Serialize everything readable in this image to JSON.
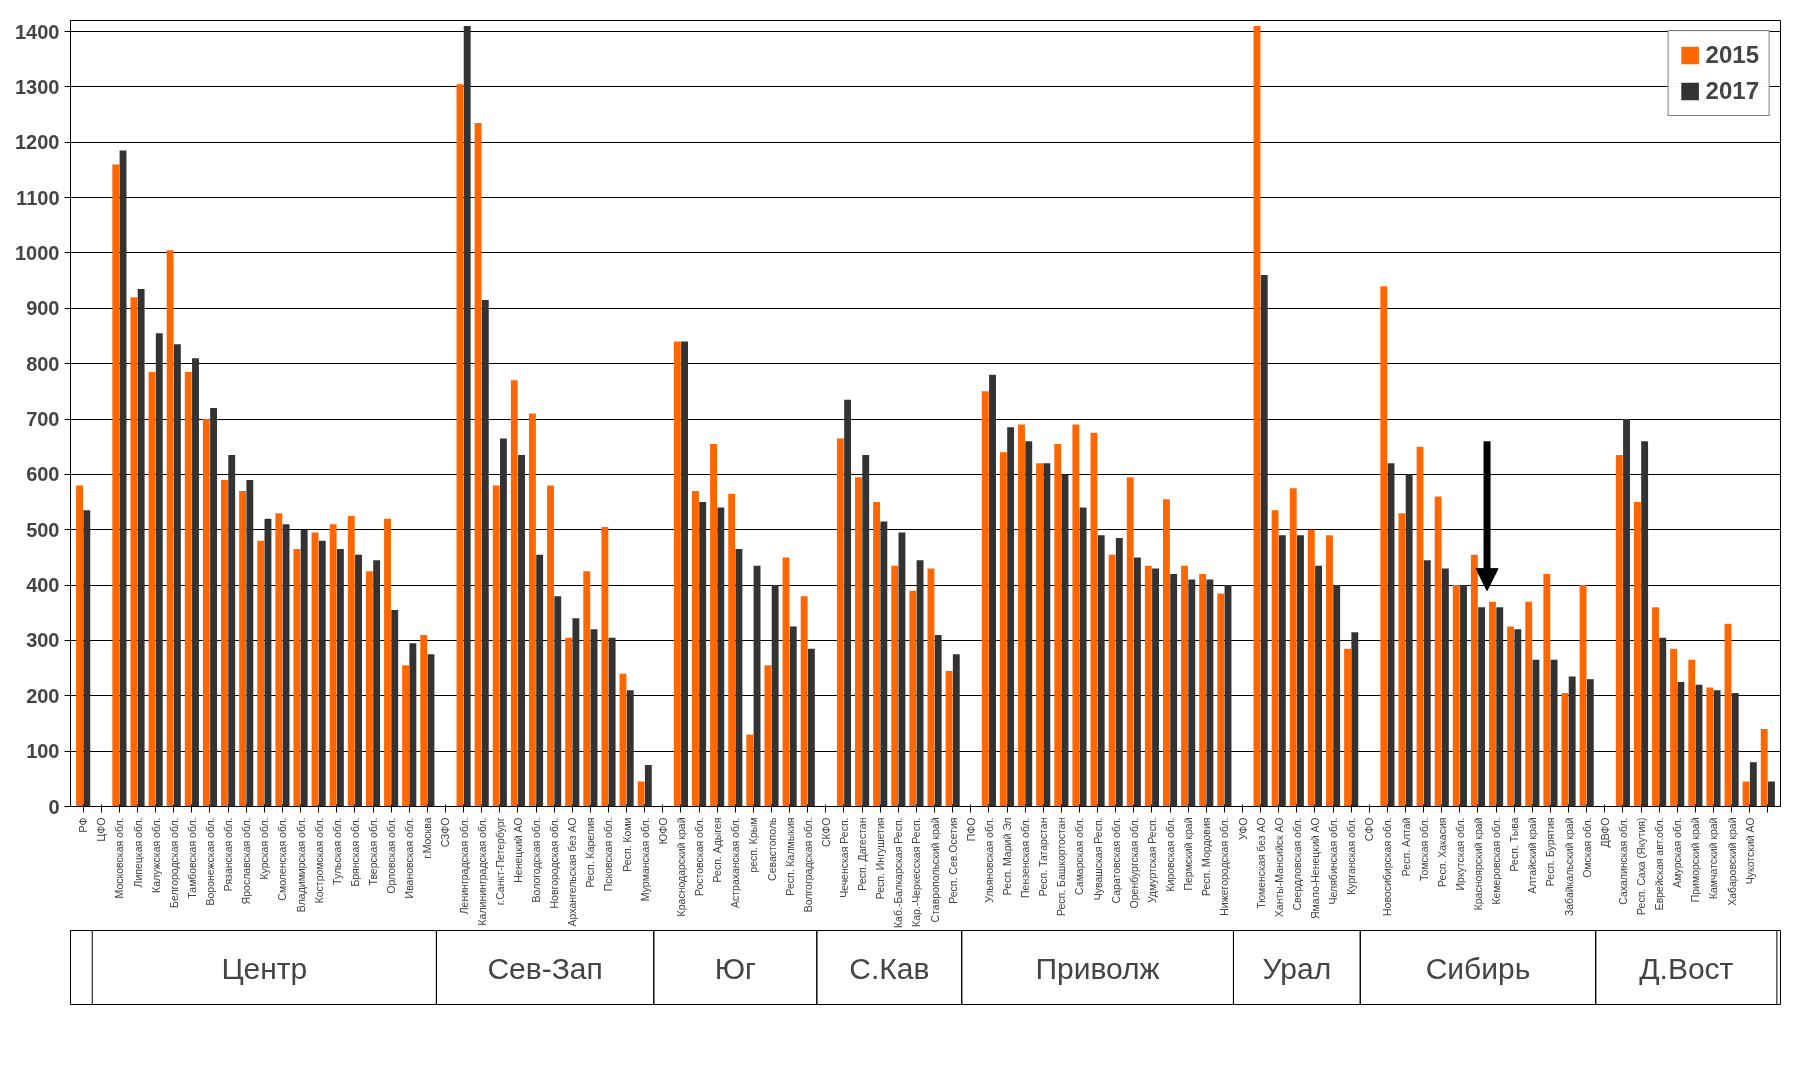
{
  "chart_data": {
    "type": "bar",
    "categories": [
      "РФ",
      "ЦФО",
      "Московская обл.",
      "Липецкая обл.",
      "Калужская обл.",
      "Белгородская обл.",
      "Тамбовская обл.",
      "Воронежская обл.",
      "Рязанская обл.",
      "Ярославская обл.",
      "Курская обл.",
      "Смоленская обл.",
      "Владимирская обл.",
      "Костромская обл.",
      "Тульская обл.",
      "Брянская обл.",
      "Тверская обл.",
      "Орловская обл.",
      "Ивановская обл.",
      "г.Москва",
      "СЗФО",
      "Ленинградская обл.",
      "Калининградская обл.",
      "г.Санкт-Петербург",
      "Ненецкий АО",
      "Вологодская обл.",
      "Новгородская обл.",
      "Архангельская без АО",
      "Респ. Карелия",
      "Псковская обл.",
      "Респ. Коми",
      "Мурманская обл.",
      "ЮФО",
      "Краснодарский край",
      "Ростовская обл.",
      "Респ. Адыгея",
      "Астраханская обл.",
      "респ. Крым",
      "Севастополь",
      "Респ. Калмыкия",
      "Волгоградская обл.",
      "СКФО",
      "Чеченская Респ.",
      "Респ. Дагестан",
      "Респ. Ингушетия",
      "Каб.-Балкарская Респ.",
      "Кар.-Черкесская Респ.",
      "Ставропольский край",
      "Респ. Сев.Осетия",
      "ПФО",
      "Ульяновская обл.",
      "Респ. Марий Эл",
      "Пензенская обл.",
      "Респ. Татарстан",
      "Респ. Башкортостан",
      "Самарская обл.",
      "Чувашская Респ.",
      "Саратовская обл.",
      "Оренбургская обл.",
      "Удмуртская Респ.",
      "Кировская обл.",
      "Пермский край",
      "Респ. Мордовия",
      "Нижегородская обл.",
      "УФО",
      "Тюменская без АО",
      "Ханты-Мансийск АО",
      "Свердловская обл.",
      "Ямало-Ненецкий АО",
      "Челябинская обл.",
      "Курганская обл.",
      "СФО",
      "Новосибирская обл.",
      "Респ. Алтай",
      "Томская обл.",
      "Респ. Хакасия",
      "Иркутская обл.",
      "Красноярский край",
      "Кемеровская обл.",
      "Респ. Тыва",
      "Алтайский край",
      "Респ. Бурятия",
      "Забайкальский край",
      "Омская обл.",
      "ДВФО",
      "Сахалинская обл.",
      "Респ. Саха (Якутия)",
      "Еврейская авт.обл.",
      "Амурская обл.",
      "Приморский край",
      "Камчатский край",
      "Хабаровский край",
      "Чукотский АО",
      null
    ],
    "series": [
      {
        "name": "2015",
        "color": "#ff6600",
        "values": [
          580,
          null,
          1160,
          920,
          785,
          1005,
          785,
          700,
          590,
          570,
          480,
          530,
          465,
          495,
          510,
          525,
          425,
          520,
          255,
          310,
          null,
          1305,
          1235,
          580,
          770,
          710,
          580,
          305,
          425,
          505,
          240,
          45,
          null,
          840,
          570,
          655,
          565,
          130,
          255,
          450,
          380,
          null,
          665,
          595,
          550,
          435,
          390,
          430,
          245,
          null,
          750,
          640,
          690,
          620,
          655,
          690,
          675,
          455,
          595,
          435,
          555,
          435,
          420,
          385,
          null,
          1410,
          535,
          575,
          500,
          490,
          285,
          null,
          940,
          530,
          650,
          560,
          400,
          455,
          370,
          325,
          370,
          420,
          205,
          400,
          null,
          635,
          550,
          360,
          285,
          265,
          215,
          330,
          45,
          140
        ]
      },
      {
        "name": "2017",
        "color": "#333333",
        "values": [
          535,
          null,
          1185,
          935,
          855,
          835,
          810,
          720,
          635,
          590,
          520,
          510,
          500,
          480,
          465,
          455,
          445,
          355,
          295,
          275,
          null,
          1410,
          915,
          665,
          635,
          455,
          380,
          340,
          320,
          305,
          210,
          75,
          null,
          840,
          550,
          540,
          465,
          435,
          400,
          325,
          285,
          null,
          735,
          635,
          515,
          495,
          445,
          310,
          275,
          null,
          780,
          685,
          660,
          620,
          600,
          540,
          490,
          485,
          450,
          430,
          420,
          410,
          410,
          400,
          null,
          960,
          490,
          490,
          435,
          400,
          315,
          null,
          620,
          600,
          445,
          430,
          400,
          360,
          360,
          320,
          265,
          265,
          235,
          230,
          null,
          700,
          660,
          305,
          225,
          220,
          210,
          205,
          80,
          45
        ]
      }
    ],
    "ylim": [
      0,
      1420
    ],
    "yticks": [
      0,
      100,
      200,
      300,
      400,
      500,
      600,
      700,
      800,
      900,
      1000,
      1100,
      1200,
      1300,
      1400
    ],
    "grid": "y",
    "legend": "top right",
    "annotations": [
      "Центр",
      "Сев-Зап",
      "Юг",
      "С.Кав",
      "Приволж",
      "Урал",
      "Сибирь",
      "Д.Вост"
    ]
  }
}
